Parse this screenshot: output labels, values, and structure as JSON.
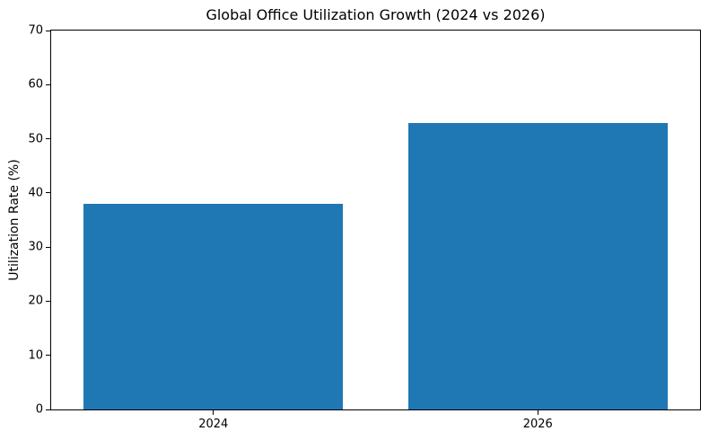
{
  "chart_data": {
    "type": "bar",
    "title": "Global Office Utilization Growth (2024 vs 2026)",
    "categories": [
      "2024",
      "2026"
    ],
    "values": [
      38,
      53
    ],
    "xlabel": "",
    "ylabel": "Utilization Rate (%)",
    "ylim": [
      0,
      70
    ],
    "yticks": [
      0,
      10,
      20,
      30,
      40,
      50,
      60,
      70
    ],
    "bar_color": "#1f77b4",
    "bar_width_fraction": 0.8,
    "background_color": "#ffffff",
    "spine_color": "#000000",
    "grid": false,
    "legend": null
  }
}
